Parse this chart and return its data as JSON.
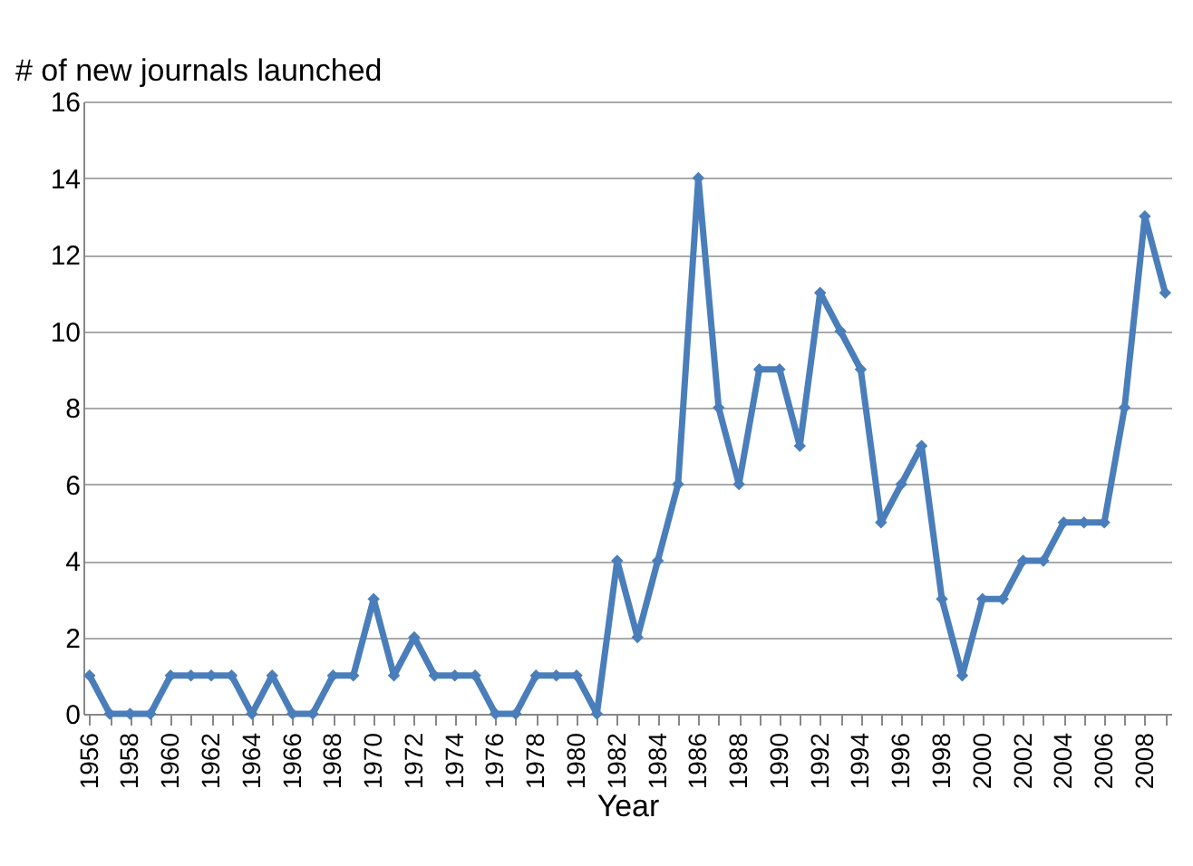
{
  "chart_data": {
    "type": "line",
    "ylabel": "# of new journals launched",
    "xlabel": "Year",
    "categories": [
      "1956",
      null,
      "1958",
      null,
      "1960",
      null,
      "1962",
      null,
      "1964",
      null,
      "1966",
      null,
      "1968",
      null,
      "1970",
      null,
      "1972",
      null,
      "1974",
      null,
      "1976",
      null,
      "1978",
      null,
      "1980",
      null,
      "1982",
      null,
      "1984",
      null,
      "1986",
      null,
      "1988",
      null,
      "1990",
      null,
      "1992",
      null,
      "1994",
      null,
      "1996",
      null,
      "1998",
      null,
      "2000",
      null,
      "2002",
      null,
      "2004",
      null,
      "2006",
      null,
      "2008",
      null
    ],
    "series": [
      {
        "color": "#4a7ebb",
        "values": [
          1,
          0,
          0,
          0,
          1,
          1,
          1,
          1,
          0,
          1,
          0,
          0,
          1,
          1,
          3,
          1,
          2,
          1,
          1,
          1,
          0,
          0,
          1,
          1,
          1,
          0,
          4,
          2,
          4,
          6,
          14,
          8,
          6,
          9,
          9,
          7,
          11,
          10,
          9,
          5,
          6,
          7,
          3,
          1,
          3,
          3,
          4,
          4,
          5,
          5,
          5,
          8,
          13,
          11
        ]
      }
    ],
    "ylim": [
      0,
      16
    ],
    "yticks": [
      0,
      2,
      4,
      6,
      8,
      10,
      12,
      14,
      16
    ],
    "grid": "y",
    "marker": "diamond",
    "line_style": "solid"
  }
}
